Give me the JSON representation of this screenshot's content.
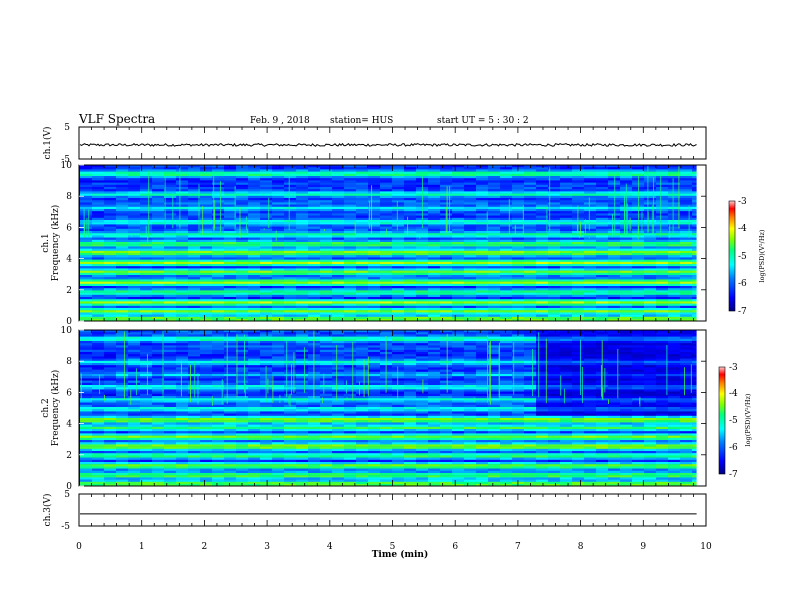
{
  "header": {
    "title": "VLF Spectra",
    "date": "Feb. 9 , 2018",
    "station": "station= HUS",
    "start": "start  UT =  5 : 30 : 2"
  },
  "colors": {
    "colormap": [
      "#000080",
      "#0000ff",
      "#0080ff",
      "#00ffff",
      "#00ff80",
      "#80ff00",
      "#ffff00",
      "#ff8000",
      "#ff0000",
      "#ffcccc"
    ],
    "trace": "#000000"
  },
  "chart_data": [
    {
      "type": "line",
      "panel": "ch1-waveform",
      "ylabel": "ch.1(V)",
      "ylim": [
        -5,
        5
      ],
      "yticks": [
        "5",
        "-5"
      ],
      "x": [
        0,
        9.85
      ],
      "series": [
        {
          "values": [
            -0.6,
            -0.6
          ]
        }
      ]
    },
    {
      "type": "heatmap",
      "panel": "ch1-spectrogram",
      "ylabel_top": "ch.1",
      "ylabel": "Frequency (kHz)",
      "ylim": [
        0,
        10
      ],
      "yticks": [
        "0",
        "2",
        "4",
        "6",
        "8",
        "10"
      ],
      "xlim": [
        0,
        9.85
      ],
      "colorbar": {
        "label": "log(PSD)(V²/Hz)",
        "range": [
          -7,
          -3
        ],
        "ticks": [
          "-3",
          "-4",
          "-5",
          "-6",
          "-7"
        ]
      },
      "bands_khz": [
        {
          "f": 0.2,
          "level": 0.62
        },
        {
          "f": 0.7,
          "level": 0.55
        },
        {
          "f": 1.25,
          "level": 0.6
        },
        {
          "f": 1.9,
          "level": 0.5
        },
        {
          "f": 2.55,
          "level": 0.62
        },
        {
          "f": 3.2,
          "level": 0.58
        },
        {
          "f": 3.8,
          "level": 0.6
        },
        {
          "f": 4.45,
          "level": 0.62
        },
        {
          "f": 5.0,
          "level": 0.55
        },
        {
          "f": 5.6,
          "level": 0.45
        },
        {
          "f": 6.4,
          "level": 0.42
        },
        {
          "f": 7.3,
          "level": 0.35
        },
        {
          "f": 8.2,
          "level": 0.42
        },
        {
          "f": 9.5,
          "level": 0.5
        }
      ]
    },
    {
      "type": "heatmap",
      "panel": "ch2-spectrogram",
      "ylabel_top": "ch.2",
      "ylabel": "Frequency (kHz)",
      "ylim": [
        0,
        10
      ],
      "yticks": [
        "0",
        "2",
        "4",
        "6",
        "8",
        "10"
      ],
      "xlim": [
        0,
        9.85
      ],
      "colorbar": {
        "label": "log(PSD)(V²/Hz)",
        "range": [
          -7,
          -3
        ],
        "ticks": [
          "-3",
          "-4",
          "-5",
          "-6",
          "-7"
        ]
      },
      "bands_khz": [
        {
          "f": 0.2,
          "level": 0.6
        },
        {
          "f": 0.75,
          "level": 0.55
        },
        {
          "f": 1.35,
          "level": 0.58
        },
        {
          "f": 2.0,
          "level": 0.5
        },
        {
          "f": 2.6,
          "level": 0.64
        },
        {
          "f": 3.2,
          "level": 0.58
        },
        {
          "f": 3.8,
          "level": 0.48
        },
        {
          "f": 4.3,
          "level": 0.62
        },
        {
          "f": 5.0,
          "level": 0.4
        },
        {
          "f": 5.6,
          "level": 0.38
        },
        {
          "f": 6.4,
          "level": 0.4
        },
        {
          "f": 7.2,
          "level": 0.3
        },
        {
          "f": 8.0,
          "level": 0.38
        },
        {
          "f": 9.5,
          "level": 0.45
        }
      ]
    },
    {
      "type": "line",
      "panel": "ch3-waveform",
      "ylabel": "ch.3(V)",
      "ylim": [
        -5,
        5
      ],
      "yticks": [
        "5",
        "-5"
      ],
      "x": [
        0,
        9.85
      ],
      "series": [
        {
          "values": [
            -1.2,
            -1.2
          ]
        }
      ]
    }
  ],
  "xaxis": {
    "label": "Time  (min)",
    "ticks": [
      "0",
      "1",
      "2",
      "3",
      "4",
      "5",
      "6",
      "7",
      "8",
      "9",
      "10"
    ],
    "range": [
      0,
      10
    ]
  }
}
